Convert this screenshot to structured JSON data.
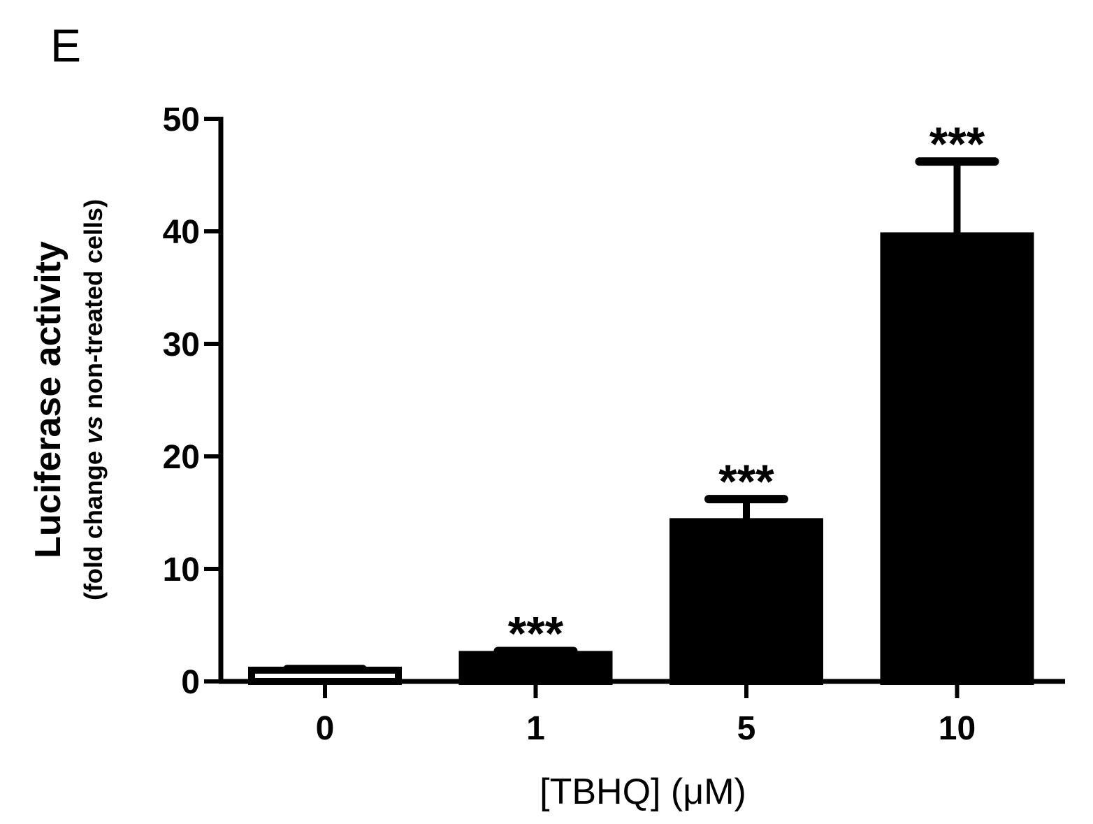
{
  "panel_label": "E",
  "chart_data": {
    "type": "bar",
    "categories": [
      "0",
      "1",
      "5",
      "10"
    ],
    "values": [
      1,
      2.4,
      14.2,
      39.6
    ],
    "error_upper": [
      1.1,
      2.7,
      16.2,
      46.2
    ],
    "significance": [
      "",
      "***",
      "***",
      "***"
    ],
    "bar_fills": [
      "#ffffff",
      "#000000",
      "#000000",
      "#000000"
    ],
    "xlabel": "[TBHQ] (μM)",
    "ylabel": "Luciferase activity",
    "ylabel_sub_prefix": "(fold change ",
    "ylabel_sub_italic": "vs",
    "ylabel_sub_suffix": " non-treated cells)",
    "ylim": [
      0,
      50
    ],
    "yticks": [
      0,
      10,
      20,
      30,
      40,
      50
    ],
    "grid": false,
    "legend": "none"
  }
}
